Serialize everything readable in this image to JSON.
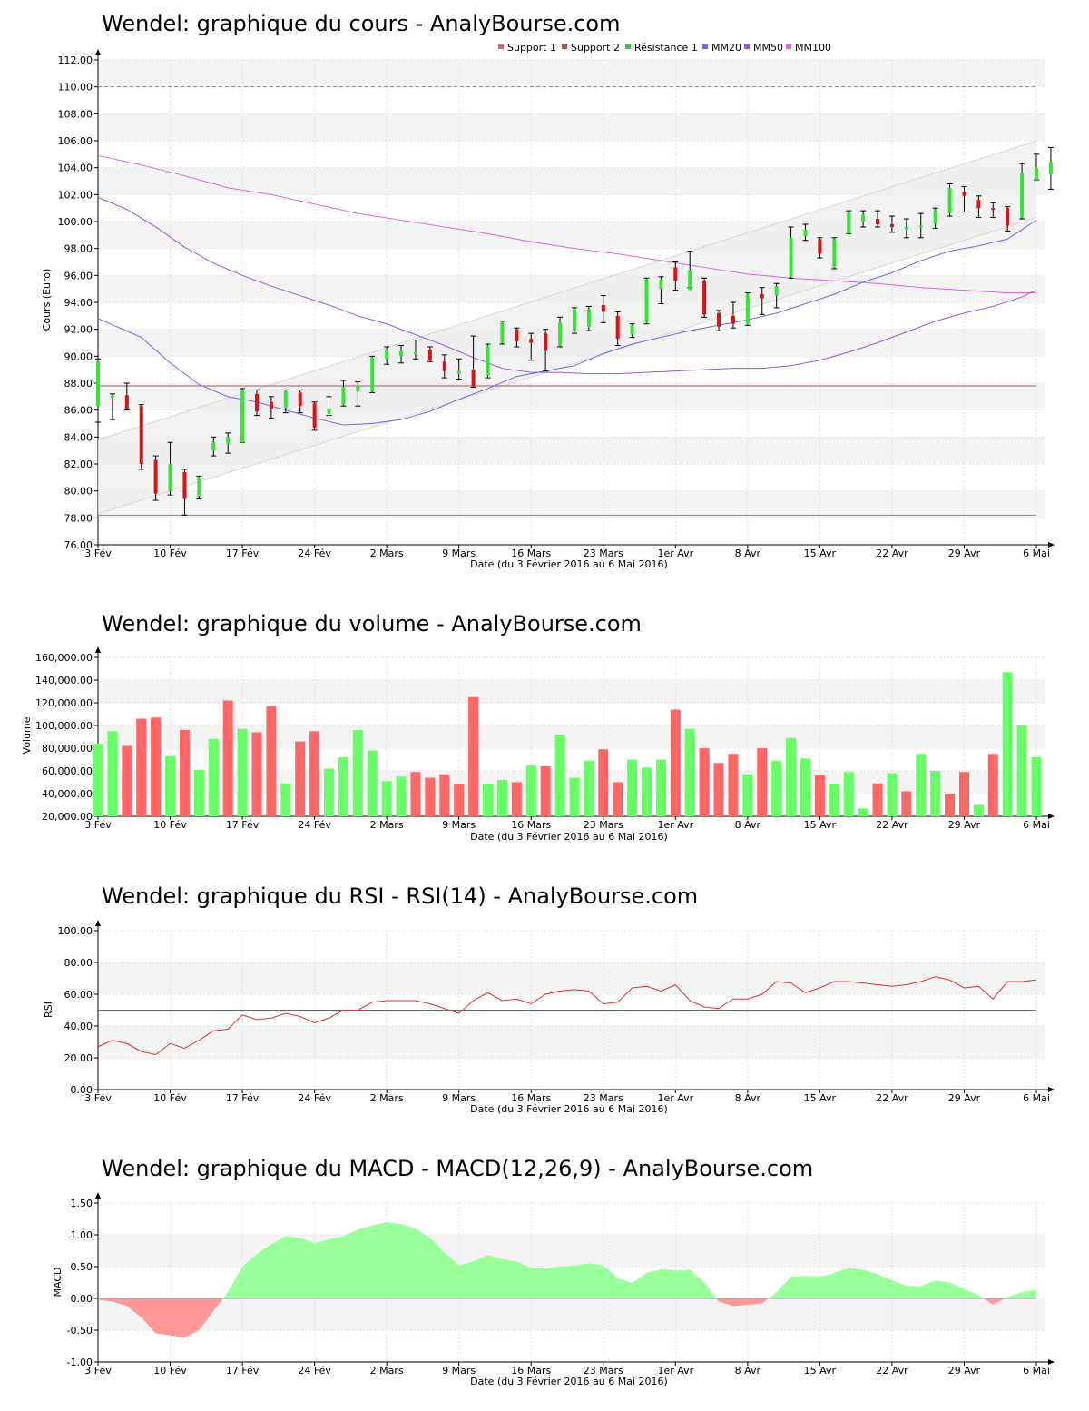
{
  "colors": {
    "up": "#33e633",
    "down": "#dd1111",
    "vol_up": "#66ff66",
    "vol_down": "#ff6666",
    "support": "#dd6666",
    "resistance": "#44bb44",
    "mm20": "#6a6aee",
    "mm50": "#9955dd",
    "mm100": "#dd66dd",
    "rsi": "#dd3333",
    "macd_pos": "#99ff99",
    "macd_neg": "#ff9999",
    "band": "#eeeeee",
    "grid": "#cccccc"
  },
  "x_axis": {
    "label": "Date (du 3 Février 2016 au 6 Mai 2016)",
    "ticks": [
      {
        "label": "3 Fév",
        "day": 0
      },
      {
        "label": "10 Fév",
        "day": 5
      },
      {
        "label": "17 Fév",
        "day": 10
      },
      {
        "label": "24 Fév",
        "day": 15
      },
      {
        "label": "2 Mars",
        "day": 20
      },
      {
        "label": "9 Mars",
        "day": 25
      },
      {
        "label": "16 Mars",
        "day": 30
      },
      {
        "label": "23 Mars",
        "day": 35
      },
      {
        "label": "1er Avr",
        "day": 40
      },
      {
        "label": "8 Avr",
        "day": 45
      },
      {
        "label": "15 Avr",
        "day": 50
      },
      {
        "label": "22 Avr",
        "day": 55
      },
      {
        "label": "29 Avr",
        "day": 60
      },
      {
        "label": "6 Mai",
        "day": 65
      }
    ]
  },
  "chart_data": [
    {
      "type": "candlestick",
      "title": "Wendel: graphique du cours - AnalyBourse.com",
      "ylabel": "Cours (Euro)",
      "ylim": [
        76,
        112
      ],
      "yticks": [
        "76.00",
        "78.00",
        "80.00",
        "82.00",
        "84.00",
        "86.00",
        "88.00",
        "90.00",
        "92.00",
        "94.00",
        "96.00",
        "98.00",
        "100.00",
        "102.00",
        "104.00",
        "106.00",
        "108.00",
        "110.00",
        "112.00"
      ],
      "legend": [
        "Support 1",
        "Support 2",
        "Résistance 1",
        "MM20",
        "MM50",
        "MM100"
      ],
      "support1": 78.2,
      "support2": 87.8,
      "resistance1": 110.0,
      "channel_upper": [
        [
          0,
          83.8
        ],
        [
          65,
          106.0
        ]
      ],
      "channel_lower": [
        [
          0,
          78.3
        ],
        [
          65,
          100.3
        ]
      ],
      "candles": [
        [
          89.8,
          85.1,
          86.3,
          89.6
        ],
        [
          87.2,
          85.3,
          86.9,
          87.1
        ],
        [
          88.0,
          86.0,
          87.1,
          86.1
        ],
        [
          86.4,
          81.6,
          86.3,
          82.0
        ],
        [
          82.6,
          79.3,
          82.3,
          79.8
        ],
        [
          83.6,
          79.7,
          80.0,
          82.0
        ],
        [
          81.6,
          78.2,
          81.4,
          79.4
        ],
        [
          81.1,
          79.4,
          79.6,
          81.0
        ],
        [
          84.0,
          82.6,
          83.0,
          83.6
        ],
        [
          84.3,
          82.8,
          83.5,
          84.0
        ],
        [
          87.6,
          83.6,
          83.6,
          87.5
        ],
        [
          87.5,
          85.6,
          87.2,
          85.9
        ],
        [
          87.0,
          85.4,
          86.6,
          86.1
        ],
        [
          87.5,
          85.8,
          86.2,
          87.4
        ],
        [
          87.5,
          85.8,
          87.3,
          86.3
        ],
        [
          86.6,
          84.5,
          86.5,
          84.7
        ],
        [
          87.0,
          85.6,
          85.7,
          86.1
        ],
        [
          88.2,
          86.3,
          86.4,
          87.7
        ],
        [
          88.1,
          86.3,
          87.4,
          87.8
        ],
        [
          90.0,
          87.3,
          87.4,
          89.9
        ],
        [
          90.7,
          89.4,
          89.8,
          90.5
        ],
        [
          90.8,
          89.5,
          90.0,
          90.4
        ],
        [
          91.2,
          89.8,
          90.2,
          90.3
        ],
        [
          90.7,
          89.6,
          90.5,
          89.7
        ],
        [
          90.1,
          88.4,
          89.6,
          88.9
        ],
        [
          89.8,
          88.3,
          88.7,
          88.9
        ],
        [
          91.5,
          87.7,
          89.0,
          87.8
        ],
        [
          90.9,
          88.4,
          88.6,
          90.8
        ],
        [
          92.6,
          90.9,
          91.0,
          92.5
        ],
        [
          92.1,
          90.7,
          92.0,
          91.1
        ],
        [
          91.7,
          89.7,
          91.3,
          91.0
        ],
        [
          92.0,
          88.9,
          91.7,
          90.4
        ],
        [
          92.9,
          90.7,
          90.8,
          92.5
        ],
        [
          93.6,
          91.7,
          91.9,
          93.5
        ],
        [
          93.7,
          91.9,
          92.2,
          93.5
        ],
        [
          94.5,
          92.5,
          93.8,
          93.3
        ],
        [
          93.3,
          90.8,
          93.0,
          91.3
        ],
        [
          92.4,
          91.4,
          91.6,
          92.3
        ],
        [
          95.8,
          92.4,
          92.5,
          95.7
        ],
        [
          95.9,
          93.9,
          95.0,
          95.7
        ],
        [
          97.0,
          94.9,
          96.6,
          95.6
        ],
        [
          97.8,
          95.1,
          94.9,
          96.4
        ],
        [
          95.8,
          92.9,
          95.6,
          93.1
        ],
        [
          93.4,
          91.9,
          93.2,
          92.2
        ],
        [
          94.0,
          92.1,
          93.0,
          92.4
        ],
        [
          94.7,
          92.3,
          92.4,
          94.6
        ],
        [
          95.1,
          93.1,
          94.6,
          94.3
        ],
        [
          95.4,
          93.6,
          94.5,
          95.2
        ],
        [
          99.6,
          95.8,
          95.9,
          98.8
        ],
        [
          99.8,
          98.6,
          98.9,
          99.4
        ],
        [
          98.8,
          97.3,
          98.7,
          97.6
        ],
        [
          98.8,
          96.5,
          96.6,
          98.7
        ],
        [
          100.8,
          99.1,
          99.1,
          100.7
        ],
        [
          100.8,
          99.6,
          100.0,
          100.5
        ],
        [
          100.8,
          99.6,
          100.2,
          99.8
        ],
        [
          100.4,
          99.2,
          99.8,
          99.6
        ],
        [
          100.2,
          98.8,
          99.4,
          99.6
        ],
        [
          100.6,
          98.8,
          99.6,
          99.7
        ],
        [
          101.0,
          99.5,
          99.8,
          100.9
        ],
        [
          102.8,
          100.4,
          100.6,
          102.5
        ],
        [
          102.6,
          100.7,
          102.2,
          101.9
        ],
        [
          101.9,
          100.3,
          101.6,
          101.0
        ],
        [
          101.4,
          100.3,
          101.0,
          100.9
        ],
        [
          101.1,
          99.3,
          101.0,
          99.7
        ],
        [
          104.3,
          100.2,
          100.3,
          103.6
        ],
        [
          105.0,
          103.1,
          103.1,
          104.0
        ],
        [
          105.5,
          102.4,
          103.5,
          104.4
        ]
      ],
      "mm20": [
        [
          0,
          92.8
        ],
        [
          3,
          91.4
        ],
        [
          5,
          89.5
        ],
        [
          7,
          87.9
        ],
        [
          9,
          87.0
        ],
        [
          11,
          86.6
        ],
        [
          13,
          86.0
        ],
        [
          15,
          85.4
        ],
        [
          17,
          84.9
        ],
        [
          19,
          85.0
        ],
        [
          21,
          85.3
        ],
        [
          23,
          85.9
        ],
        [
          25,
          86.8
        ],
        [
          27,
          87.6
        ],
        [
          29,
          88.5
        ],
        [
          31,
          88.9
        ],
        [
          33,
          89.3
        ],
        [
          35,
          90.2
        ],
        [
          37,
          90.9
        ],
        [
          39,
          91.4
        ],
        [
          41,
          91.9
        ],
        [
          43,
          92.3
        ],
        [
          45,
          92.7
        ],
        [
          47,
          93.2
        ],
        [
          49,
          93.9
        ],
        [
          51,
          94.6
        ],
        [
          53,
          95.5
        ],
        [
          55,
          96.2
        ],
        [
          57,
          97.1
        ],
        [
          59,
          97.8
        ],
        [
          61,
          98.2
        ],
        [
          63,
          98.7
        ],
        [
          65,
          100.1
        ]
      ],
      "mm50": [
        [
          0,
          101.8
        ],
        [
          2,
          100.9
        ],
        [
          4,
          99.6
        ],
        [
          6,
          98.1
        ],
        [
          8,
          96.9
        ],
        [
          10,
          96.0
        ],
        [
          12,
          95.2
        ],
        [
          14,
          94.5
        ],
        [
          16,
          93.8
        ],
        [
          18,
          93.0
        ],
        [
          20,
          92.4
        ],
        [
          22,
          91.6
        ],
        [
          24,
          90.8
        ],
        [
          26,
          89.9
        ],
        [
          28,
          89.1
        ],
        [
          30,
          88.8
        ],
        [
          32,
          88.8
        ],
        [
          34,
          88.7
        ],
        [
          36,
          88.7
        ],
        [
          38,
          88.8
        ],
        [
          40,
          88.9
        ],
        [
          42,
          89.0
        ],
        [
          44,
          89.1
        ],
        [
          46,
          89.1
        ],
        [
          48,
          89.3
        ],
        [
          50,
          89.7
        ],
        [
          52,
          90.3
        ],
        [
          54,
          91.0
        ],
        [
          56,
          91.8
        ],
        [
          58,
          92.6
        ],
        [
          60,
          93.2
        ],
        [
          62,
          93.7
        ],
        [
          64,
          94.4
        ],
        [
          65,
          94.9
        ]
      ],
      "mm100": [
        [
          0,
          104.9
        ],
        [
          3,
          104.2
        ],
        [
          6,
          103.4
        ],
        [
          9,
          102.5
        ],
        [
          12,
          102.0
        ],
        [
          15,
          101.3
        ],
        [
          18,
          100.6
        ],
        [
          21,
          100.1
        ],
        [
          24,
          99.6
        ],
        [
          27,
          99.1
        ],
        [
          30,
          98.5
        ],
        [
          33,
          98.0
        ],
        [
          36,
          97.6
        ],
        [
          39,
          97.1
        ],
        [
          42,
          96.6
        ],
        [
          45,
          96.1
        ],
        [
          48,
          95.8
        ],
        [
          51,
          95.6
        ],
        [
          54,
          95.4
        ],
        [
          57,
          95.1
        ],
        [
          60,
          94.9
        ],
        [
          63,
          94.7
        ],
        [
          65,
          94.7
        ]
      ]
    },
    {
      "type": "bar",
      "title": "Wendel: graphique du volume - AnalyBourse.com",
      "ylabel": "Volume",
      "ylim": [
        20000,
        160000
      ],
      "yticks": [
        "20,000.00",
        "40,000.00",
        "60,000.00",
        "80,000.00",
        "100,000.00",
        "120,000.00",
        "140,000.00",
        "160,000.00"
      ],
      "values": [
        84000,
        95000,
        82000,
        106000,
        107000,
        73000,
        96000,
        61000,
        88000,
        122000,
        97000,
        94000,
        117000,
        49000,
        86000,
        95000,
        62000,
        72000,
        96000,
        78000,
        51000,
        55000,
        59000,
        54000,
        57000,
        48000,
        125000,
        48000,
        52000,
        50000,
        65000,
        64000,
        92000,
        54000,
        69000,
        79000,
        50000,
        70000,
        63000,
        70000,
        114000,
        97000,
        80000,
        67000,
        75000,
        57000,
        80000,
        69000,
        89000,
        71000,
        56000,
        48000,
        59000,
        27000,
        49000,
        58000,
        42000,
        75000,
        60000,
        40000,
        59000,
        30000,
        75000,
        147000,
        100000,
        72000
      ],
      "up": [
        true,
        true,
        false,
        false,
        false,
        true,
        false,
        true,
        true,
        false,
        true,
        false,
        false,
        true,
        false,
        false,
        true,
        true,
        true,
        true,
        true,
        true,
        false,
        false,
        false,
        false,
        false,
        true,
        true,
        false,
        true,
        false,
        true,
        true,
        true,
        false,
        false,
        true,
        true,
        true,
        false,
        true,
        false,
        false,
        false,
        true,
        false,
        true,
        true,
        true,
        false,
        true,
        true,
        true,
        false,
        true,
        false,
        true,
        true,
        false,
        false,
        true,
        false,
        true,
        true,
        true
      ]
    },
    {
      "type": "line",
      "title": "Wendel: graphique du RSI - RSI(14) - AnalyBourse.com",
      "ylabel": "RSI",
      "ylim": [
        0,
        100
      ],
      "yticks": [
        "0.00",
        "20.00",
        "40.00",
        "60.00",
        "80.00",
        "100.00"
      ],
      "reference": 50,
      "values": [
        27,
        31,
        29,
        24,
        22,
        29,
        26,
        31,
        37,
        38,
        47,
        44,
        45,
        48,
        46,
        42,
        45,
        50,
        50,
        55,
        56,
        56,
        56,
        54,
        51,
        48,
        56,
        61,
        56,
        57,
        54,
        60,
        62,
        63,
        62,
        54,
        55,
        64,
        65,
        62,
        66,
        56,
        52,
        51,
        57,
        57,
        60,
        68,
        67,
        61,
        64,
        68,
        68,
        67,
        66,
        65,
        66,
        68,
        71,
        69,
        64,
        65,
        57,
        68,
        68,
        69
      ]
    },
    {
      "type": "area",
      "title": "Wendel: graphique du MACD - MACD(12,26,9) - AnalyBourse.com",
      "ylabel": "MACD",
      "ylim": [
        -1.0,
        1.5
      ],
      "yticks": [
        "-1.00",
        "-0.50",
        "0.00",
        "0.50",
        "1.00",
        "1.50"
      ],
      "values": [
        -0.02,
        -0.05,
        -0.12,
        -0.3,
        -0.55,
        -0.58,
        -0.62,
        -0.5,
        -0.2,
        0.1,
        0.5,
        0.7,
        0.85,
        0.98,
        0.95,
        0.87,
        0.93,
        0.98,
        1.08,
        1.15,
        1.2,
        1.17,
        1.1,
        0.95,
        0.72,
        0.52,
        0.58,
        0.68,
        0.62,
        0.58,
        0.48,
        0.47,
        0.5,
        0.52,
        0.55,
        0.52,
        0.32,
        0.24,
        0.4,
        0.46,
        0.44,
        0.45,
        0.25,
        -0.05,
        -0.12,
        -0.1,
        -0.08,
        0.1,
        0.34,
        0.35,
        0.34,
        0.4,
        0.48,
        0.45,
        0.38,
        0.28,
        0.2,
        0.19,
        0.28,
        0.25,
        0.15,
        0.05,
        -0.1,
        0.02,
        0.1,
        0.13
      ]
    }
  ]
}
